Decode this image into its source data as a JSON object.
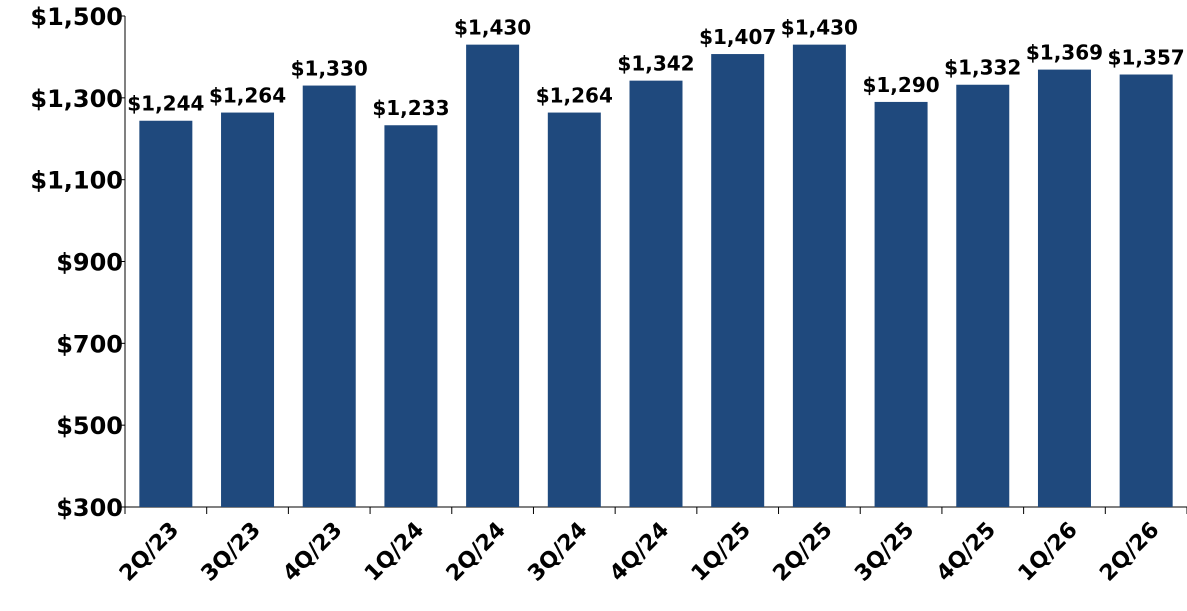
{
  "chart_data": {
    "type": "bar",
    "categories": [
      "2Q/23",
      "3Q/23",
      "4Q/23",
      "1Q/24",
      "2Q/24",
      "3Q/24",
      "4Q/24",
      "1Q/25",
      "2Q/25",
      "3Q/25",
      "4Q/25",
      "1Q/26",
      "2Q/26"
    ],
    "values": [
      1244,
      1264,
      1330,
      1233,
      1430,
      1264,
      1342,
      1407,
      1430,
      1290,
      1332,
      1369,
      1357
    ],
    "data_labels": [
      "$1,244",
      "$1,264",
      "$1,330",
      "$1,233",
      "$1,430",
      "$1,264",
      "$1,342",
      "$1,407",
      "$1,430",
      "$1,290",
      "$1,332",
      "$1,369",
      "$1,357"
    ],
    "ylim": [
      300,
      1500
    ],
    "yticks": [
      300,
      500,
      700,
      900,
      1100,
      1300,
      1500
    ],
    "ytick_labels": [
      "$300",
      "$500",
      "$700",
      "$900",
      "$1,100",
      "$1,300",
      "$1,500"
    ],
    "title": "",
    "xlabel": "",
    "ylabel": "",
    "grid": false,
    "legend": "none",
    "bar_color": "#1f497d"
  }
}
